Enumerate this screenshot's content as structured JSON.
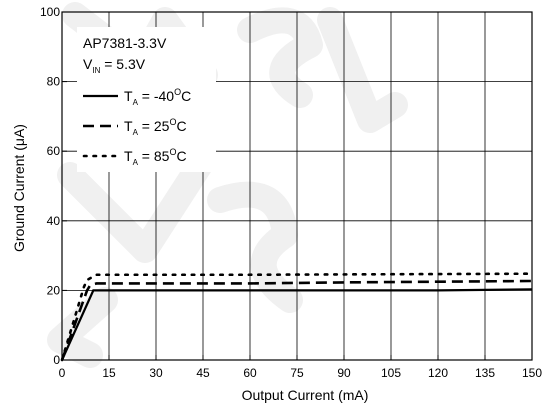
{
  "chart_data": {
    "type": "line",
    "title": "",
    "xlabel": "Output Current (mA)",
    "ylabel_prefix": "Ground Current (",
    "ylabel_mu": "μ",
    "ylabel_suffix": "A)",
    "xlim": [
      0,
      150
    ],
    "ylim": [
      0,
      100
    ],
    "x_ticks": [
      0,
      15,
      30,
      45,
      60,
      75,
      90,
      105,
      120,
      135,
      150
    ],
    "y_ticks": [
      0,
      20,
      40,
      60,
      80,
      100
    ],
    "grid": true,
    "legend_position": "top-left",
    "legend_header": {
      "device": "AP7381-3.3V",
      "vin_symbol": "V",
      "vin_subscript": "IN",
      "vin_value": " = 5.3V"
    },
    "series": [
      {
        "name": "TA = -40°C",
        "label_symbol": "T",
        "label_subscript": "A",
        "label_value": " = -40",
        "label_degree": "O",
        "label_unit": "C",
        "style": "solid",
        "points": [
          [
            0,
            0
          ],
          [
            10,
            20
          ],
          [
            30,
            20
          ],
          [
            60,
            20
          ],
          [
            90,
            20
          ],
          [
            120,
            20
          ],
          [
            150,
            20.3
          ]
        ]
      },
      {
        "name": "TA = 25°C",
        "label_symbol": "T",
        "label_subscript": "A",
        "label_value": " = 25",
        "label_degree": "O",
        "label_unit": "C",
        "style": "dashed",
        "points": [
          [
            0,
            0
          ],
          [
            8,
            20
          ],
          [
            9,
            21.5
          ],
          [
            11,
            22
          ],
          [
            30,
            22
          ],
          [
            60,
            22
          ],
          [
            90,
            22.3
          ],
          [
            120,
            22.5
          ],
          [
            150,
            22.7
          ]
        ]
      },
      {
        "name": "TA = 85°C",
        "label_symbol": "T",
        "label_subscript": "A",
        "label_value": " = 85",
        "label_degree": "O",
        "label_unit": "C",
        "style": "dotted",
        "points": [
          [
            0,
            0
          ],
          [
            7,
            21
          ],
          [
            8,
            23
          ],
          [
            11,
            24.5
          ],
          [
            30,
            24.5
          ],
          [
            60,
            24.5
          ],
          [
            90,
            24.6
          ],
          [
            120,
            24.7
          ],
          [
            150,
            24.8
          ]
        ]
      }
    ]
  }
}
